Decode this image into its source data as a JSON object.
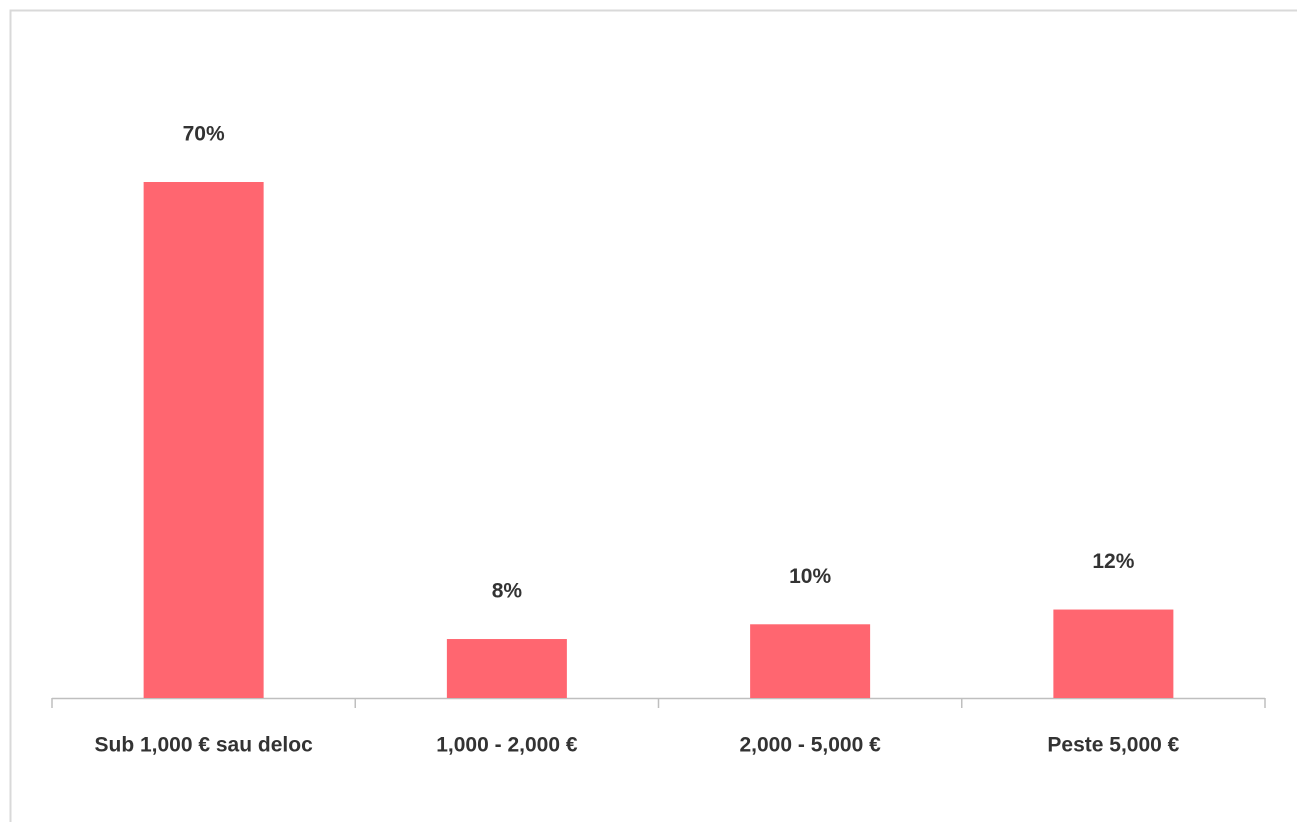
{
  "chart_data": {
    "type": "bar",
    "categories": [
      "Sub 1,000 € sau deloc",
      "1,000 - 2,000 €",
      "2,000 - 5,000 €",
      "Peste 5,000 €"
    ],
    "values": [
      70,
      8,
      10,
      12
    ],
    "value_labels": [
      "70%",
      "8%",
      "10%",
      "12%"
    ],
    "color": "#ff6670"
  }
}
